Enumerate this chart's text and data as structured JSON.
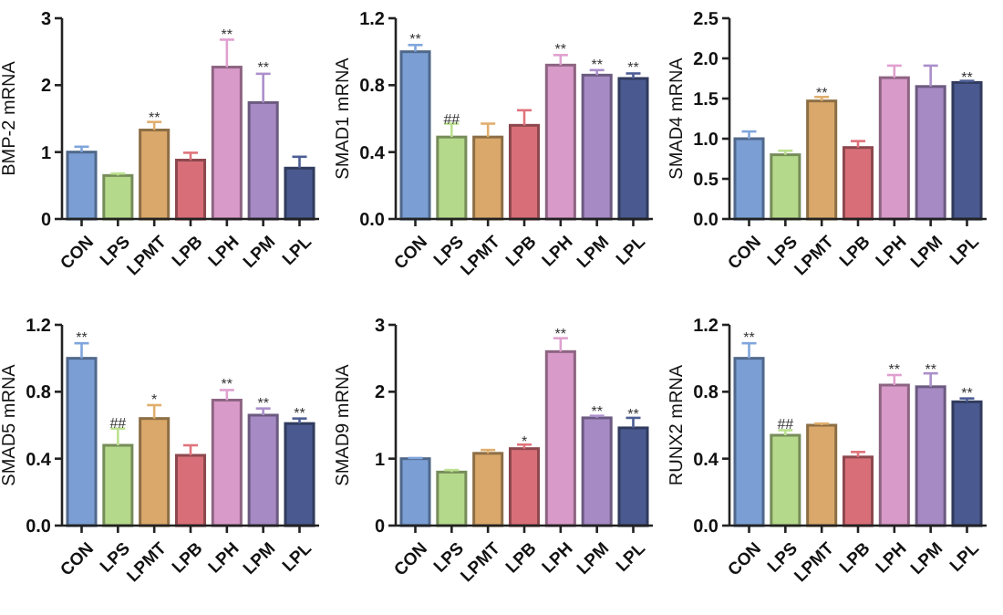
{
  "chart_data": [
    {
      "type": "bar",
      "ylabel": "BMP-2 mRNA",
      "categories": [
        "CON",
        "LPS",
        "LPMT",
        "LPB",
        "LPH",
        "LPM",
        "LPL"
      ],
      "values": [
        1.0,
        0.65,
        1.33,
        0.88,
        2.27,
        1.74,
        0.76
      ],
      "colors": [
        "#7b9fd4",
        "#b5d98a",
        "#d9a86a",
        "#d86f78",
        "#d89ac8",
        "#a58ac4",
        "#4a5a90"
      ],
      "errors": [
        [
          1.0,
          1.08
        ],
        [
          0.65,
          0.68
        ],
        [
          1.33,
          1.45
        ],
        [
          0.88,
          0.99
        ],
        [
          2.27,
          2.68
        ],
        [
          1.74,
          2.17
        ],
        [
          0.76,
          0.93
        ]
      ],
      "ylim": [
        0,
        3
      ],
      "yticks": [
        0,
        1,
        2,
        3
      ],
      "annotations": [
        {
          "text": "**",
          "x": "LPMT",
          "y": 1.55
        },
        {
          "text": "**",
          "x": "LPH",
          "y": 2.8
        },
        {
          "text": "**",
          "x": "LPM",
          "y": 2.3
        }
      ]
    },
    {
      "type": "bar",
      "ylabel": "SMAD1 mRNA",
      "categories": [
        "CON",
        "LPS",
        "LPMT",
        "LPB",
        "LPH",
        "LPM",
        "LPL"
      ],
      "values": [
        1.0,
        0.49,
        0.49,
        0.56,
        0.92,
        0.86,
        0.84
      ],
      "colors": [
        "#7b9fd4",
        "#b5d98a",
        "#d9a86a",
        "#d86f78",
        "#d89ac8",
        "#a58ac4",
        "#4a5a90"
      ],
      "errors": [
        [
          1.0,
          1.04
        ],
        [
          0.49,
          0.57
        ],
        [
          0.49,
          0.57
        ],
        [
          0.56,
          0.65
        ],
        [
          0.92,
          0.98
        ],
        [
          0.86,
          0.89
        ],
        [
          0.84,
          0.87
        ]
      ],
      "ylim": [
        0,
        1.2
      ],
      "yticks": [
        {
          "value": 0,
          "label": "0.0"
        },
        {
          "value": 0.4,
          "label": "0.4"
        },
        {
          "value": 0.8,
          "label": "0.8"
        },
        {
          "value": 1.2,
          "label": "1.2"
        }
      ],
      "annotations": [
        {
          "text": "**",
          "x": "CON",
          "y": 1.09
        },
        {
          "text": "##",
          "x": "LPS",
          "y": 0.61
        },
        {
          "text": "**",
          "x": "LPH",
          "y": 1.03
        },
        {
          "text": "**",
          "x": "LPM",
          "y": 0.94
        },
        {
          "text": "**",
          "x": "LPL",
          "y": 0.92
        }
      ]
    },
    {
      "type": "bar",
      "ylabel": "SMAD4 mRNA",
      "categories": [
        "CON",
        "LPS",
        "LPMT",
        "LPB",
        "LPH",
        "LPM",
        "LPL"
      ],
      "values": [
        1.0,
        0.8,
        1.47,
        0.89,
        1.76,
        1.65,
        1.7
      ],
      "colors": [
        "#7b9fd4",
        "#b5d98a",
        "#d9a86a",
        "#d86f78",
        "#d89ac8",
        "#a58ac4",
        "#4a5a90"
      ],
      "errors": [
        [
          1.0,
          1.09
        ],
        [
          0.8,
          0.85
        ],
        [
          1.47,
          1.52
        ],
        [
          0.89,
          0.97
        ],
        [
          1.76,
          1.91
        ],
        [
          1.65,
          1.91
        ],
        [
          1.7,
          1.72
        ]
      ],
      "ylim": [
        0,
        2.5
      ],
      "yticks": [
        {
          "value": 0,
          "label": "0.0"
        },
        {
          "value": 0.5,
          "label": "0.5"
        },
        {
          "value": 1,
          "label": "1.0"
        },
        {
          "value": 1.5,
          "label": "1.5"
        },
        {
          "value": 2,
          "label": "2.0"
        },
        {
          "value": 2.5,
          "label": "2.5"
        }
      ],
      "annotations": [
        {
          "text": "**",
          "x": "LPMT",
          "y": 1.6
        },
        {
          "text": "**",
          "x": "LPL",
          "y": 1.8
        }
      ]
    },
    {
      "type": "bar",
      "ylabel": "SMAD5 mRNA",
      "categories": [
        "CON",
        "LPS",
        "LPMT",
        "LPB",
        "LPH",
        "LPM",
        "LPL"
      ],
      "values": [
        1.0,
        0.48,
        0.64,
        0.42,
        0.75,
        0.66,
        0.61
      ],
      "colors": [
        "#7b9fd4",
        "#b5d98a",
        "#d9a86a",
        "#d86f78",
        "#d89ac8",
        "#a58ac4",
        "#4a5a90"
      ],
      "errors": [
        [
          1.0,
          1.09
        ],
        [
          0.48,
          0.58
        ],
        [
          0.64,
          0.72
        ],
        [
          0.42,
          0.48
        ],
        [
          0.75,
          0.81
        ],
        [
          0.66,
          0.7
        ],
        [
          0.61,
          0.64
        ]
      ],
      "ylim": [
        0,
        1.2
      ],
      "yticks": [
        {
          "value": 0,
          "label": "0.0"
        },
        {
          "value": 0.4,
          "label": "0.4"
        },
        {
          "value": 0.8,
          "label": "0.8"
        },
        {
          "value": 1.2,
          "label": "1.2"
        }
      ],
      "annotations": [
        {
          "text": "**",
          "x": "CON",
          "y": 1.14
        },
        {
          "text": "##",
          "x": "LPS",
          "y": 0.63
        },
        {
          "text": "*",
          "x": "LPMT",
          "y": 0.77
        },
        {
          "text": "**",
          "x": "LPH",
          "y": 0.86
        },
        {
          "text": "**",
          "x": "LPM",
          "y": 0.75
        },
        {
          "text": "**",
          "x": "LPL",
          "y": 0.69
        }
      ]
    },
    {
      "type": "bar",
      "ylabel": "SMAD9 mRNA",
      "categories": [
        "CON",
        "LPS",
        "LPMT",
        "LPB",
        "LPH",
        "LPM",
        "LPL"
      ],
      "values": [
        1.0,
        0.8,
        1.08,
        1.15,
        2.6,
        1.61,
        1.46
      ],
      "colors": [
        "#7b9fd4",
        "#b5d98a",
        "#d9a86a",
        "#d86f78",
        "#d89ac8",
        "#a58ac4",
        "#4a5a90"
      ],
      "errors": [
        [
          1.0,
          1.01
        ],
        [
          0.8,
          0.83
        ],
        [
          1.08,
          1.13
        ],
        [
          1.15,
          1.21
        ],
        [
          2.6,
          2.8
        ],
        [
          1.61,
          1.64
        ],
        [
          1.46,
          1.61
        ]
      ],
      "ylim": [
        0,
        3
      ],
      "yticks": [
        0,
        1,
        2,
        3
      ],
      "annotations": [
        {
          "text": "*",
          "x": "LPB",
          "y": 1.3
        },
        {
          "text": "**",
          "x": "LPH",
          "y": 2.9
        },
        {
          "text": "**",
          "x": "LPM",
          "y": 1.74
        },
        {
          "text": "**",
          "x": "LPL",
          "y": 1.71
        }
      ]
    },
    {
      "type": "bar",
      "ylabel": "RUNX2 mRNA",
      "categories": [
        "CON",
        "LPS",
        "LPMT",
        "LPB",
        "LPH",
        "LPM",
        "LPL"
      ],
      "values": [
        1.0,
        0.54,
        0.6,
        0.41,
        0.84,
        0.83,
        0.74
      ],
      "colors": [
        "#7b9fd4",
        "#b5d98a",
        "#d9a86a",
        "#d86f78",
        "#d89ac8",
        "#a58ac4",
        "#4a5a90"
      ],
      "errors": [
        [
          1.0,
          1.09
        ],
        [
          0.54,
          0.57
        ],
        [
          0.6,
          0.61
        ],
        [
          0.41,
          0.44
        ],
        [
          0.84,
          0.9
        ],
        [
          0.83,
          0.91
        ],
        [
          0.74,
          0.76
        ]
      ],
      "ylim": [
        0,
        1.2
      ],
      "yticks": [
        {
          "value": 0,
          "label": "0.0"
        },
        {
          "value": 0.4,
          "label": "0.4"
        },
        {
          "value": 0.8,
          "label": "0.8"
        },
        {
          "value": 1.2,
          "label": "1.2"
        }
      ],
      "annotations": [
        {
          "text": "**",
          "x": "CON",
          "y": 1.14
        },
        {
          "text": "##",
          "x": "LPS",
          "y": 0.62
        },
        {
          "text": "**",
          "x": "LPH",
          "y": 0.95
        },
        {
          "text": "**",
          "x": "LPM",
          "y": 0.95
        },
        {
          "text": "**",
          "x": "LPL",
          "y": 0.81
        }
      ]
    }
  ]
}
